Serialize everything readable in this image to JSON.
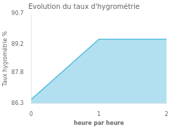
{
  "chart_data": {
    "type": "area",
    "title": "Evolution du taux d'hygrométrie",
    "xlabel": "heure par heure",
    "ylabel": "Taux hygrométrie %",
    "x": [
      0,
      1,
      2
    ],
    "values": [
      86.5,
      89.45,
      89.45
    ],
    "color": "#55bbdd",
    "xlim": [
      0,
      2
    ],
    "ylim": [
      86.3,
      90.7
    ],
    "xticks": [
      0,
      1,
      2
    ],
    "yticks": [
      86.3,
      87.8,
      89.2,
      90.7
    ],
    "grid": false
  }
}
